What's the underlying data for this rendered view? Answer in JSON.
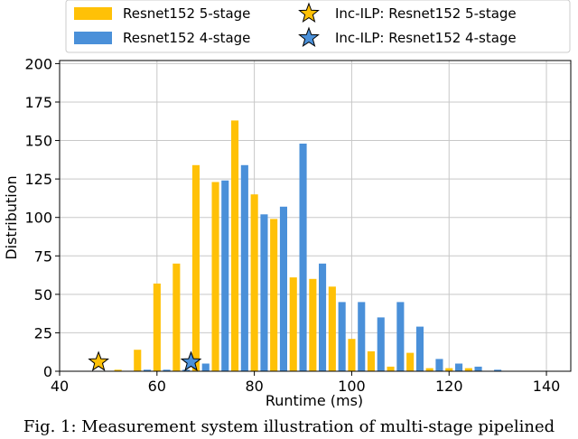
{
  "caption": "Fig. 1: Measurement system illustration of multi-stage pipelined",
  "colors": {
    "five_stage": "#FFC107",
    "four_stage": "#4A90D9",
    "grid": "#c8c8c8"
  },
  "chart_data": {
    "type": "bar",
    "xlabel": "Runtime (ms)",
    "ylabel": "Distribution",
    "xlim": [
      40,
      145
    ],
    "ylim": [
      0,
      202
    ],
    "xticks": [
      40,
      60,
      80,
      100,
      120,
      140
    ],
    "yticks": [
      0,
      25,
      50,
      75,
      100,
      125,
      150,
      175,
      200
    ],
    "grid": true,
    "legend_position": "top-center",
    "bar_width": 1.5,
    "series": [
      {
        "name": "Resnet152 5-stage",
        "color": "#FFC107",
        "x": [
          52,
          56,
          60,
          64,
          68,
          72,
          76,
          80,
          84,
          88,
          92,
          96,
          100,
          104,
          108,
          112,
          116,
          120,
          124
        ],
        "values": [
          1,
          14,
          57,
          70,
          134,
          123,
          163,
          115,
          99,
          61,
          60,
          55,
          21,
          13,
          3,
          12,
          2,
          2,
          2
        ]
      },
      {
        "name": "Resnet152 4-stage",
        "color": "#4A90D9",
        "x": [
          58,
          62,
          66,
          70,
          74,
          78,
          82,
          86,
          90,
          94,
          98,
          102,
          106,
          110,
          114,
          118,
          122,
          126,
          130
        ],
        "values": [
          1,
          1,
          1,
          5,
          124,
          134,
          102,
          107,
          148,
          70,
          45,
          45,
          35,
          45,
          29,
          8,
          5,
          3,
          1
        ]
      }
    ],
    "markers": [
      {
        "name": "Inc-ILP: Resnet152 5-stage",
        "x": 48,
        "y": 6,
        "color": "#FFC107",
        "shape": "star"
      },
      {
        "name": "Inc-ILP: Resnet152 4-stage",
        "x": 67,
        "y": 6,
        "color": "#4A90D9",
        "shape": "star"
      }
    ]
  }
}
